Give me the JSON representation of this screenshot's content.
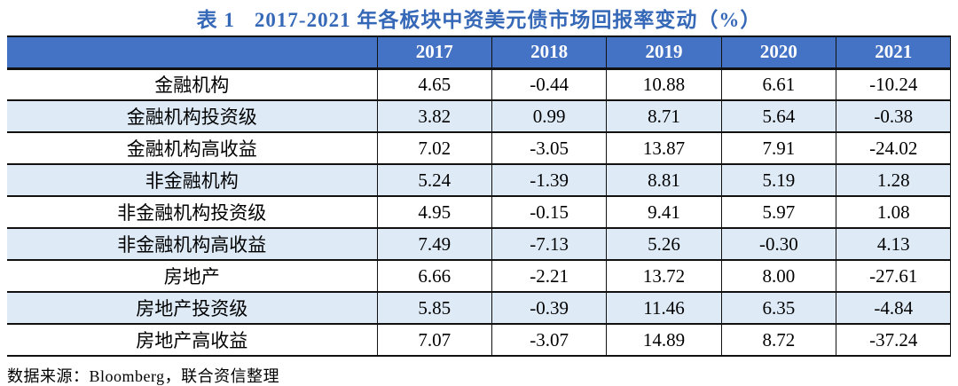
{
  "title": {
    "prefix": "表 1",
    "text": "2017-2021 年各板块中资美元债市场回报率变动（%）"
  },
  "source_note": "数据来源：Bloomberg，联合资信整理",
  "colors": {
    "header_bg": "#4472C4",
    "header_text": "#FFFFFF",
    "alt_row_bg": "#DEEBF7",
    "border": "#111111",
    "title_text": "#3668B8"
  },
  "chart_data": {
    "type": "table",
    "title": "表 1 2017-2021 年各板块中资美元债市场回报率变动（%）",
    "columns": [
      "",
      "2017",
      "2018",
      "2019",
      "2020",
      "2021"
    ],
    "rows": [
      {
        "label": "金融机构",
        "values": [
          "4.65",
          "-0.44",
          "10.88",
          "6.61",
          "-10.24"
        ]
      },
      {
        "label": "金融机构投资级",
        "values": [
          "3.82",
          "0.99",
          "8.71",
          "5.64",
          "-0.38"
        ]
      },
      {
        "label": "金融机构高收益",
        "values": [
          "7.02",
          "-3.05",
          "13.87",
          "7.91",
          "-24.02"
        ]
      },
      {
        "label": "非金融机构",
        "values": [
          "5.24",
          "-1.39",
          "8.81",
          "5.19",
          "1.28"
        ]
      },
      {
        "label": "非金融机构投资级",
        "values": [
          "4.95",
          "-0.15",
          "9.41",
          "5.97",
          "1.08"
        ]
      },
      {
        "label": "非金融机构高收益",
        "values": [
          "7.49",
          "-7.13",
          "5.26",
          "-0.30",
          "4.13"
        ]
      },
      {
        "label": "房地产",
        "values": [
          "6.66",
          "-2.21",
          "13.72",
          "8.00",
          "-27.61"
        ]
      },
      {
        "label": "房地产投资级",
        "values": [
          "5.85",
          "-0.39",
          "11.46",
          "6.35",
          "-4.84"
        ]
      },
      {
        "label": "房地产高收益",
        "values": [
          "7.07",
          "-3.07",
          "14.89",
          "8.72",
          "-37.24"
        ]
      }
    ],
    "source": "数据来源：Bloomberg，联合资信整理"
  }
}
